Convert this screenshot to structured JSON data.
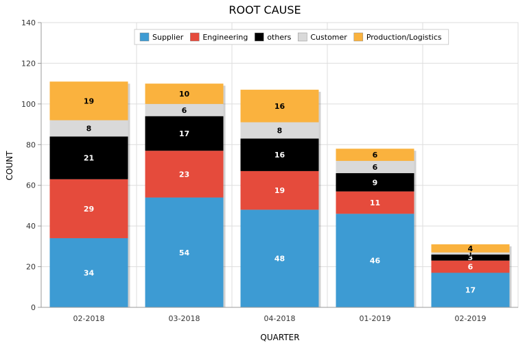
{
  "chart_data": {
    "type": "bar",
    "stacked": true,
    "title": "ROOT CAUSE",
    "xlabel": "QUARTER",
    "ylabel": "COUNT",
    "ylim": [
      0,
      140
    ],
    "yticks": [
      0,
      20,
      40,
      60,
      80,
      100,
      120,
      140
    ],
    "grid": true,
    "legend_position": "top-center",
    "categories": [
      "02-2018",
      "03-2018",
      "04-2018",
      "01-2019",
      "02-2019"
    ],
    "series": [
      {
        "name": "Supplier",
        "color": "#3d9bd3",
        "label_color": "#ffffff",
        "values": [
          34,
          54,
          48,
          46,
          17
        ]
      },
      {
        "name": "Engineering",
        "color": "#e54b3c",
        "label_color": "#ffffff",
        "values": [
          29,
          23,
          19,
          11,
          6
        ]
      },
      {
        "name": "others",
        "color": "#000000",
        "label_color": "#ffffff",
        "values": [
          21,
          17,
          16,
          9,
          3
        ]
      },
      {
        "name": "Customer",
        "color": "#d9d9d9",
        "label_color": "#000000",
        "values": [
          8,
          6,
          8,
          6,
          1
        ]
      },
      {
        "name": "Production/Logistics",
        "color": "#fab23e",
        "label_color": "#000000",
        "values": [
          19,
          10,
          16,
          6,
          4
        ]
      }
    ]
  }
}
